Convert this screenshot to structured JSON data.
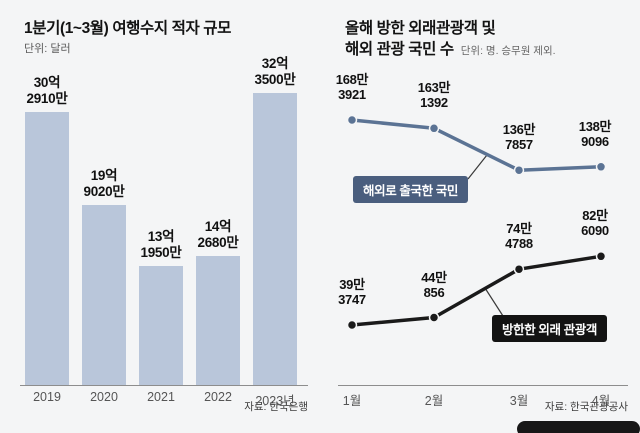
{
  "left_chart": {
    "title": "1분기(1~3월) 여행수지 적자 규모",
    "unit": "단위: 달러",
    "source": "자료: 한국은행"
  },
  "right_chart": {
    "title_line1": "올해 방한 외래관광객 및",
    "title_line2": "해외 관광 국민 수",
    "unit": "단위: 명. 승무원 제외.",
    "source": "자료: 한국관광공사",
    "badge_outbound": "해외로 출국한 국민",
    "badge_inbound": "방한한 외래 관광객"
  },
  "chart_data": [
    {
      "type": "bar",
      "title": "1분기(1~3월) 여행수지 적자 규모",
      "unit": "단위: 달러",
      "categories": [
        "2019",
        "2020",
        "2021",
        "2022",
        "2023년"
      ],
      "values": [
        3029100000,
        1990200000,
        1319500000,
        1426800000,
        3235000000
      ],
      "value_labels": [
        "30억\n2910만",
        "19억\n9020만",
        "13억\n1950만",
        "14억\n2680만",
        "32억\n3500만"
      ],
      "bar_color": "#b9c6da",
      "ylim": [
        0,
        3235000000
      ],
      "source": "자료: 한국은행"
    },
    {
      "type": "line",
      "title": "올해 방한 외래관광객 및 해외 관광 국민 수",
      "unit": "단위: 명. 승무원 제외.",
      "x": [
        "1월",
        "2월",
        "3월",
        "4월"
      ],
      "series": [
        {
          "name": "해외로 출국한 국민",
          "color": "#5b7394",
          "values": [
            1683921,
            1631392,
            1367857,
            1389096
          ],
          "point_labels": [
            "168만\n3921",
            "163만\n1392",
            "136만\n7857",
            "138만\n9096"
          ]
        },
        {
          "name": "방한한 외래 관광객",
          "color": "#1a1a1a",
          "values": [
            393747,
            440856,
            744788,
            826090
          ],
          "point_labels": [
            "39만\n3747",
            "44만\n856",
            "74만\n4788",
            "82만\n6090"
          ]
        }
      ],
      "legend_position": "on-chart-badges",
      "grid": false,
      "source": "자료: 한국관광공사"
    }
  ]
}
